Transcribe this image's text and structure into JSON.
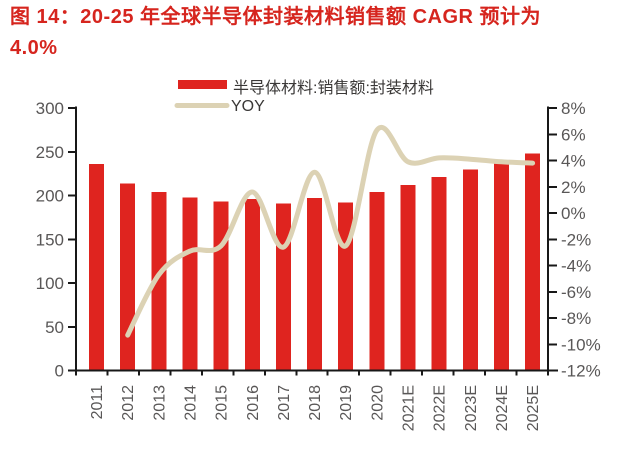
{
  "title": {
    "line1": "图 14：20-25 年全球半导体封装材料销售额 CAGR 预计为",
    "line2": "4.0%"
  },
  "legend": {
    "bar_label": "半导体材料:销售额:封装材料",
    "line_label": "YOY"
  },
  "colors": {
    "title_red": "#d6251e",
    "bar_red": "#df241f",
    "line_beige": "#dcd2b4",
    "axis_text": "#595757",
    "legend_text": "#3a3837",
    "axis_line": "#181818"
  },
  "chart_data": {
    "type": "bar",
    "subtype": "bar+line combo, dual axis",
    "title": "图 14：20-25 年全球半导体封装材料销售额 CAGR 预计为 4.0%",
    "categories": [
      "2011",
      "2012",
      "2013",
      "2014",
      "2015",
      "2016",
      "2017",
      "2018",
      "2019",
      "2020",
      "2021E",
      "2022E",
      "2023E",
      "2024E",
      "2025E"
    ],
    "series": [
      {
        "name": "半导体材料:销售额:封装材料",
        "type": "bar",
        "axis": "left",
        "color": "#df241f",
        "values": [
          236,
          214,
          204,
          198,
          193,
          196,
          191,
          197,
          192,
          204,
          212,
          221,
          230,
          239,
          248
        ]
      },
      {
        "name": "YOY",
        "type": "line",
        "axis": "right",
        "unit": "%",
        "color": "#dcd2b4",
        "smooth": true,
        "values": [
          null,
          -9.3,
          -4.7,
          -2.9,
          -2.5,
          1.6,
          -2.6,
          3.1,
          -2.5,
          6.3,
          3.9,
          4.2,
          4.1,
          3.9,
          3.8
        ]
      }
    ],
    "left_axis": {
      "min": 0,
      "max": 300,
      "step": 50,
      "tick_labels": [
        "0",
        "50",
        "100",
        "150",
        "200",
        "250",
        "300"
      ]
    },
    "right_axis": {
      "min": -12,
      "max": 8,
      "step": 2,
      "tick_labels": [
        "-12%",
        "-10%",
        "-8%",
        "-6%",
        "-4%",
        "-2%",
        "0%",
        "2%",
        "4%",
        "6%",
        "8%"
      ]
    },
    "grid": false,
    "legend_position": "top",
    "x_label_rotation": -90
  }
}
